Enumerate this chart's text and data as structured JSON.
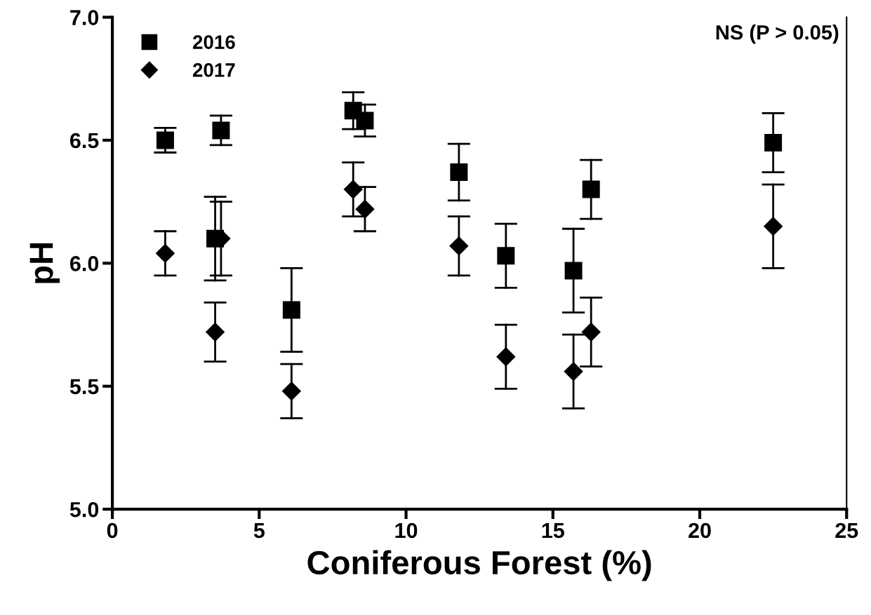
{
  "chart_data": {
    "type": "scatter",
    "xlabel": "Coniferous Forest (%)",
    "ylabel": "pH",
    "annotations": [
      "NS (P > 0.05)"
    ],
    "series": [
      {
        "name": "2016",
        "color": "#000000",
        "marker": "square",
        "x": [
          1.8,
          3.5,
          3.7,
          6.1,
          8.2,
          8.6,
          11.8,
          13.4,
          15.7,
          16.3,
          22.5
        ],
        "values": [
          6.5,
          6.1,
          6.54,
          5.81,
          6.62,
          6.58,
          6.37,
          6.03,
          5.97,
          6.3,
          6.49
        ],
        "errors": [
          0.05,
          0.17,
          0.06,
          0.17,
          0.075,
          0.065,
          0.115,
          0.13,
          0.17,
          0.12,
          0.12
        ]
      },
      {
        "name": "2017",
        "color": "#000000",
        "marker": "diamond",
        "x": [
          1.8,
          3.5,
          3.7,
          6.1,
          8.2,
          8.6,
          11.8,
          13.4,
          15.7,
          16.3,
          22.5
        ],
        "values": [
          6.04,
          5.72,
          6.1,
          5.48,
          6.3,
          6.22,
          6.07,
          5.62,
          5.56,
          5.72,
          6.15
        ],
        "errors": [
          0.09,
          0.12,
          0.15,
          0.11,
          0.11,
          0.09,
          0.12,
          0.13,
          0.15,
          0.14,
          0.17
        ]
      }
    ],
    "xlim": [
      0,
      25
    ],
    "xticks": [
      0,
      5,
      10,
      15,
      20,
      25
    ],
    "ylim": [
      5,
      7
    ],
    "yticks": [
      {
        "value": 5,
        "label": "5.0"
      },
      {
        "value": 5.5,
        "label": "5.5"
      },
      {
        "value": 6,
        "label": "6.0"
      },
      {
        "value": 6.5,
        "label": "6.5"
      },
      {
        "value": 7,
        "label": "7.0"
      }
    ],
    "grid": false,
    "legend": "top left"
  }
}
